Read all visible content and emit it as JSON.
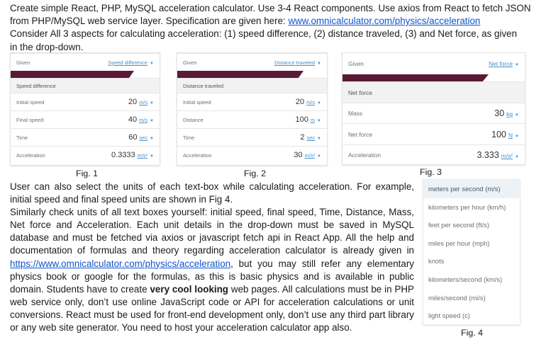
{
  "intro": {
    "line1": "Create simple React, PHP, MySQL acceleration calculator. Use 3-4 React components. Use axios from React to fetch JSON",
    "line2_pre": "from PHP/MySQL web service layer. Specification are given here: ",
    "line2_link": "www.omnicalculator.com/physics/acceleration",
    "line3": "Consider All 3 aspects for calculating acceleration: (1) speed difference, (2) distance traveled, (3) and Net force, as given",
    "line4": "in the drop-down."
  },
  "fig1": {
    "given_label": "Given",
    "given_value": "Speed difference",
    "section": "Speed difference",
    "rows": [
      {
        "label": "Initial speed",
        "value": "20",
        "unit": "m/s"
      },
      {
        "label": "Final speed",
        "value": "40",
        "unit": "m/s"
      },
      {
        "label": "Time",
        "value": "60",
        "unit": "sec"
      },
      {
        "label": "Acceleration",
        "value": "0.3333",
        "unit": "m/s²"
      }
    ],
    "caption": "Fig. 1"
  },
  "fig2": {
    "given_label": "Given",
    "given_value": "Distance traveled",
    "section": "Distance traveled",
    "rows": [
      {
        "label": "Initial speed",
        "value": "20",
        "unit": "m/s"
      },
      {
        "label": "Distance",
        "value": "100",
        "unit": "m"
      },
      {
        "label": "Time",
        "value": "2",
        "unit": "sec"
      },
      {
        "label": "Acceleration",
        "value": "30",
        "unit": "m/s²"
      }
    ],
    "caption": "Fig. 2"
  },
  "fig3": {
    "given_label": "Given",
    "given_value": "Net force",
    "section": "Net force",
    "rows": [
      {
        "label": "Mass",
        "value": "30",
        "unit": "kg"
      },
      {
        "label": "Net force",
        "value": "100",
        "unit": "N"
      },
      {
        "label": "Acceleration",
        "value": "3.333",
        "unit": "m/s²"
      }
    ],
    "caption": "Fig. 3"
  },
  "fig4": {
    "options": [
      "meters per second (m/s)",
      "kilometers per hour (km/h)",
      "feet per second (ft/s)",
      "miles per hour (mph)",
      "knots",
      "kilometers/second (km/s)",
      "miles/second (mi/s)",
      "light speed (c)"
    ],
    "caption": "Fig. 4"
  },
  "body": {
    "p1": "User can also select the units of each text-box while calculating acceleration. For example, initial speed and final speed units are shown in Fig 4.",
    "p2_a": "Similarly check units of all text boxes yourself:  initial speed, final speed, Time, Distance, Mass, Net force and Acceleration.  Each unit details in the drop-down must be saved in MySQL database and must be fetched via axios or javascript fetch api in React App. All the help and documentation of formulas and theory regarding acceleration calculator is already given in ",
    "p2_link": "https://www.omnicalculator.com/physics/acceleration",
    "p2_b": ", but you may still refer any elementary physics book or google for the formulas, as this is basic physics and is available in public domain. Students have to create ",
    "p2_bold": "very cool looking",
    "p2_c": " web pages. All calculations must be in PHP web service only, don’t use online JavaScript code or API for acceleration calculations or unit conversions.  React must be used for front-end development only, don’t use any third part library or any web site generator. You need to host your acceleration calculator app also."
  },
  "colors": {
    "accent_bar": "#5a1a36",
    "link": "#1155cc",
    "unit_link": "#4a90c9"
  },
  "icons": [
    "caret-down-icon"
  ]
}
